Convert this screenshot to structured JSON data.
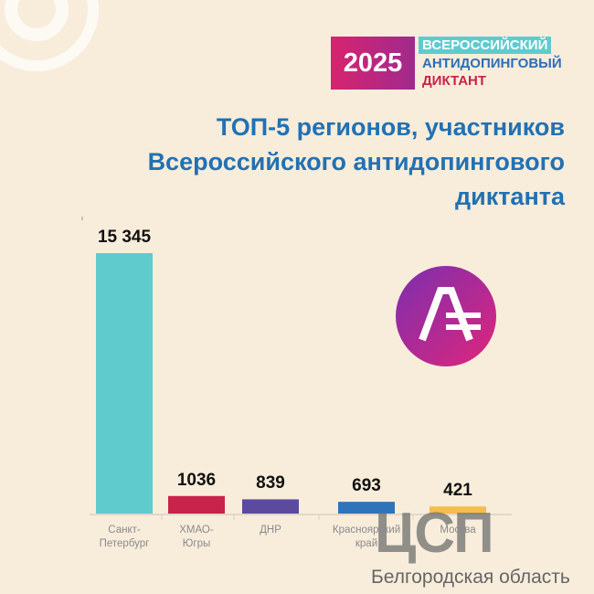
{
  "logo": {
    "year": "2025",
    "line1": "ВСЕРОССИЙСКИЙ",
    "line2": "АНТИДОПИНГОВЫЙ",
    "line3": "ДИКТАНТ"
  },
  "watermark": {
    "brand": "ЦСП",
    "region": "Белгородская область"
  },
  "chart_data": {
    "type": "bar",
    "title": "ТОП-5 регионов, участников\nВсероссийского антидопингового\nдиктанта",
    "categories": [
      "Санкт-\nПетербург",
      "ХМАО-\nЮгры",
      "ДНР",
      "Красноярский\nкрай",
      "Москва"
    ],
    "values": [
      15345,
      1036,
      839,
      693,
      421
    ],
    "value_labels": [
      "15 345",
      "1036",
      "839",
      "693",
      "421"
    ],
    "colors": [
      "#5fcbcd",
      "#c8234a",
      "#5b4a9e",
      "#2f73bb",
      "#f4bd4c"
    ]
  }
}
